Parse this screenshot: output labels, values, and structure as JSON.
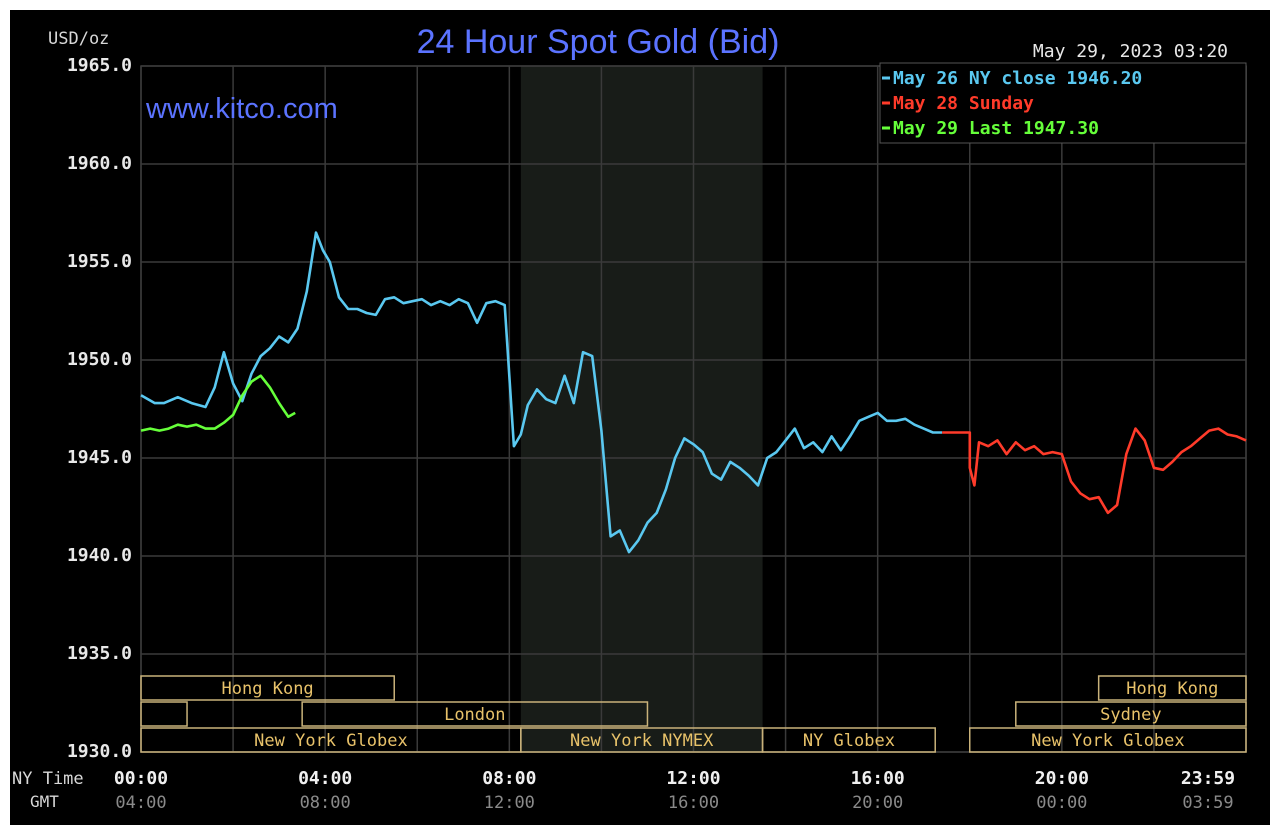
{
  "chart_data": {
    "type": "line",
    "title": "24 Hour Spot Gold (Bid)",
    "watermark": "www.kitco.com",
    "ylabel": "USD/oz",
    "timestamp": "May 29, 2023 03:20",
    "ylim": [
      1930.0,
      1965.0
    ],
    "y_ticks": [
      "1965.0",
      "1960.0",
      "1955.0",
      "1950.0",
      "1945.0",
      "1940.0",
      "1935.0",
      "1930.0"
    ],
    "y_tick_values": [
      1965,
      1960,
      1955,
      1950,
      1945,
      1940,
      1935,
      1930
    ],
    "xlim": [
      0,
      24
    ],
    "x_row_label_ny": "NY Time",
    "x_row_label_gmt": "GMT",
    "x_tick_values": [
      0,
      4,
      8,
      12,
      16,
      20,
      24
    ],
    "x_ticks_ny": [
      "00:00",
      "04:00",
      "08:00",
      "12:00",
      "16:00",
      "20:00",
      "23:59"
    ],
    "x_ticks_gmt": [
      "04:00",
      "08:00",
      "12:00",
      "16:00",
      "20:00",
      "00:00",
      "03:59"
    ],
    "grid": true,
    "legend_position": "top-right",
    "legend": [
      {
        "key": "may26",
        "text": "May 26 NY close 1946.20",
        "color": "#5ac8f0"
      },
      {
        "key": "may28",
        "text": "May 28 Sunday",
        "color": "#ff3b2a"
      },
      {
        "key": "may29",
        "text": "May 29 Last 1947.30",
        "color": "#66ff3a"
      }
    ],
    "series": [
      {
        "key": "may26",
        "color": "#5ac8f0",
        "x": [
          0,
          0.3,
          0.5,
          0.8,
          1.1,
          1.4,
          1.6,
          1.8,
          2.0,
          2.2,
          2.4,
          2.6,
          2.8,
          3.0,
          3.2,
          3.4,
          3.6,
          3.8,
          3.95,
          4.1,
          4.3,
          4.5,
          4.7,
          4.9,
          5.1,
          5.3,
          5.5,
          5.7,
          5.9,
          6.1,
          6.3,
          6.5,
          6.7,
          6.9,
          7.1,
          7.3,
          7.5,
          7.7,
          7.9,
          8.1,
          8.25,
          8.4,
          8.6,
          8.8,
          9.0,
          9.2,
          9.4,
          9.6,
          9.8,
          10.0,
          10.2,
          10.4,
          10.6,
          10.8,
          11.0,
          11.2,
          11.4,
          11.6,
          11.8,
          12.0,
          12.2,
          12.4,
          12.6,
          12.8,
          13.0,
          13.2,
          13.4,
          13.6,
          13.8,
          14.0,
          14.2,
          14.4,
          14.6,
          14.8,
          15.0,
          15.2,
          15.4,
          15.6,
          15.8,
          16.0,
          16.2,
          16.4,
          16.6,
          16.8,
          17.0,
          17.2,
          17.4
        ],
        "values": [
          1948.2,
          1947.8,
          1947.8,
          1948.1,
          1947.8,
          1947.6,
          1948.6,
          1950.4,
          1948.8,
          1947.9,
          1949.3,
          1950.2,
          1950.6,
          1951.2,
          1950.9,
          1951.6,
          1953.5,
          1956.5,
          1955.6,
          1955.0,
          1953.2,
          1952.6,
          1952.6,
          1952.4,
          1952.3,
          1953.1,
          1953.2,
          1952.9,
          1953.0,
          1953.1,
          1952.8,
          1953.0,
          1952.8,
          1953.1,
          1952.9,
          1951.9,
          1952.9,
          1953.0,
          1952.8,
          1945.6,
          1946.2,
          1947.7,
          1948.5,
          1948.0,
          1947.8,
          1949.2,
          1947.8,
          1950.4,
          1950.2,
          1946.4,
          1941.0,
          1941.3,
          1940.2,
          1940.8,
          1941.7,
          1942.2,
          1943.4,
          1945.0,
          1946.0,
          1945.7,
          1945.3,
          1944.2,
          1943.9,
          1944.8,
          1944.5,
          1944.1,
          1943.6,
          1945.0,
          1945.3,
          1945.9,
          1946.5,
          1945.5,
          1945.8,
          1945.3,
          1946.1,
          1945.4,
          1946.1,
          1946.9,
          1947.1,
          1947.3,
          1946.9,
          1946.9,
          1947.0,
          1946.7,
          1946.5,
          1946.3,
          1946.3
        ]
      },
      {
        "key": "may28",
        "color": "#ff3b2a",
        "x": [
          17.4,
          18.0,
          18.0,
          18.1,
          18.2,
          18.4,
          18.6,
          18.8,
          19.0,
          19.2,
          19.4,
          19.6,
          19.8,
          20.0,
          20.2,
          20.4,
          20.6,
          20.8,
          21.0,
          21.2,
          21.4,
          21.6,
          21.8,
          22.0,
          22.2,
          22.4,
          22.6,
          22.8,
          23.0,
          23.2,
          23.4,
          23.6,
          23.8,
          24.0
        ],
        "values": [
          1946.3,
          1946.3,
          1944.5,
          1943.6,
          1945.8,
          1945.6,
          1945.9,
          1945.2,
          1945.8,
          1945.4,
          1945.6,
          1945.2,
          1945.3,
          1945.2,
          1943.8,
          1943.2,
          1942.9,
          1943.0,
          1942.2,
          1942.6,
          1945.2,
          1946.5,
          1945.9,
          1944.5,
          1944.4,
          1944.8,
          1945.3,
          1945.6,
          1946.0,
          1946.4,
          1946.5,
          1946.2,
          1946.1,
          1945.9
        ]
      },
      {
        "key": "may29",
        "color": "#66ff3a",
        "x": [
          0,
          0.2,
          0.4,
          0.6,
          0.8,
          1.0,
          1.2,
          1.4,
          1.6,
          1.8,
          2.0,
          2.2,
          2.4,
          2.6,
          2.8,
          3.0,
          3.2,
          3.35
        ],
        "values": [
          1946.4,
          1946.5,
          1946.4,
          1946.5,
          1946.7,
          1946.6,
          1946.7,
          1946.5,
          1946.5,
          1946.8,
          1947.2,
          1948.2,
          1948.9,
          1949.2,
          1948.6,
          1947.8,
          1947.1,
          1947.3
        ]
      }
    ],
    "market_sessions": [
      {
        "label": "Hong Kong",
        "start": 0,
        "end": 5.5,
        "row": 0
      },
      {
        "label": "",
        "start": 0,
        "end": 1.0,
        "row": 1
      },
      {
        "label": "London",
        "start": 3.5,
        "end": 11.0,
        "row": 1
      },
      {
        "label": "New York Globex",
        "start": 0,
        "end": 8.25,
        "row": 2
      },
      {
        "label": "New York NYMEX",
        "start": 8.25,
        "end": 13.5,
        "row": 2
      },
      {
        "label": "NY Globex",
        "start": 13.5,
        "end": 17.25,
        "row": 2
      },
      {
        "label": "Hong Kong",
        "start": 20.8,
        "end": 24,
        "row": 0
      },
      {
        "label": "Sydney",
        "start": 19.0,
        "end": 24,
        "row": 1
      },
      {
        "label": "New York Globex",
        "start": 18.0,
        "end": 24,
        "row": 2
      }
    ],
    "nymex_shading": {
      "start": 8.25,
      "end": 13.5
    }
  }
}
